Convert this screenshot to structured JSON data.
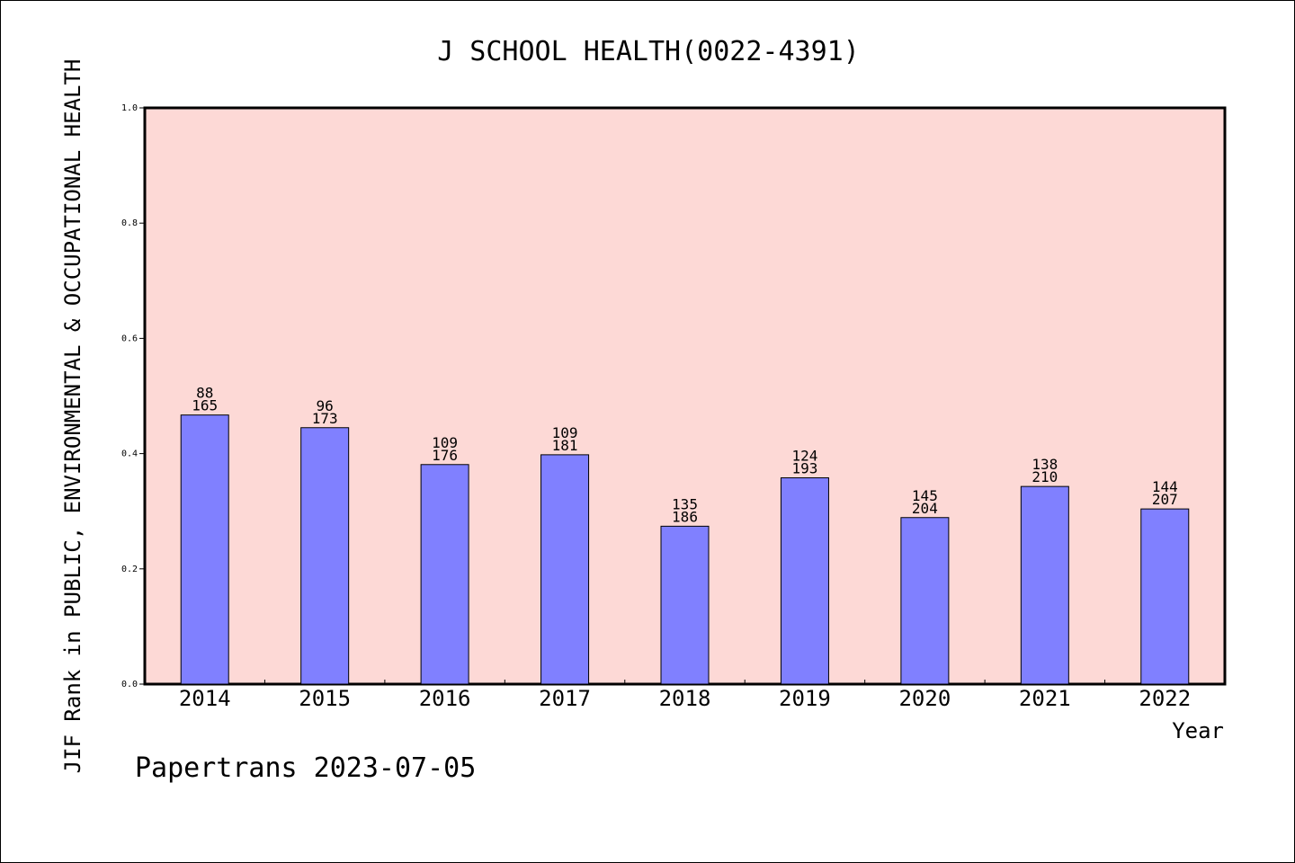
{
  "chart_data": {
    "type": "bar",
    "title": "J SCHOOL HEALTH(0022-4391)",
    "xlabel": "Year",
    "ylabel": "JIF Rank in PUBLIC, ENVIRONMENTAL & OCCUPATIONAL HEALTH",
    "ylim": [
      0,
      1.0
    ],
    "yticks": [
      "0.0",
      "0.2",
      "0.4",
      "0.6",
      "0.8",
      "1.0"
    ],
    "categories": [
      "2014",
      "2015",
      "2016",
      "2017",
      "2018",
      "2019",
      "2020",
      "2021",
      "2022"
    ],
    "values": [
      0.467,
      0.445,
      0.381,
      0.398,
      0.274,
      0.358,
      0.289,
      0.343,
      0.304
    ],
    "rank": [
      "88",
      "96",
      "109",
      "109",
      "135",
      "124",
      "145",
      "138",
      "144"
    ],
    "total": [
      "165",
      "173",
      "176",
      "181",
      "186",
      "193",
      "204",
      "210",
      "207"
    ],
    "grid": false,
    "plot_background": "#fdd9d6",
    "bar_color": "#8080ff"
  },
  "footer": "Papertrans 2023-07-05"
}
